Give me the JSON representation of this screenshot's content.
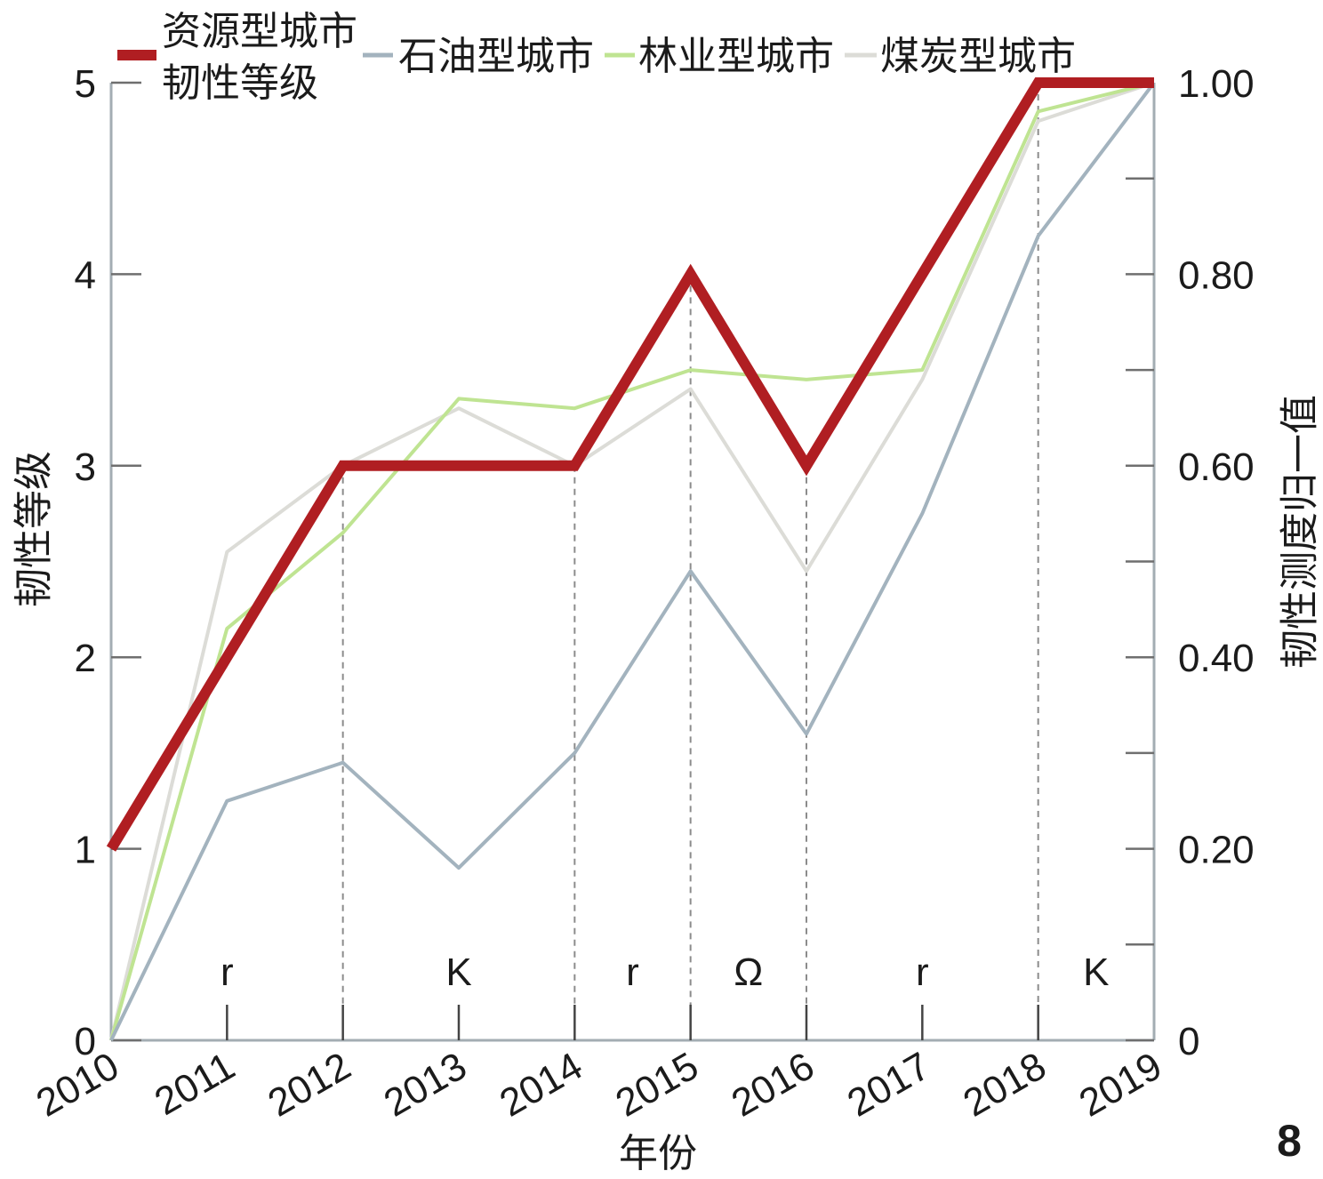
{
  "chart_data": {
    "type": "line",
    "xlabel": "年份",
    "categories": [
      "2010",
      "2011",
      "2012",
      "2013",
      "2014",
      "2015",
      "2016",
      "2017",
      "2018",
      "2019"
    ],
    "y_left": {
      "label": "韧性等级",
      "range": [
        0,
        5
      ],
      "ticks": [
        0,
        1,
        2,
        3,
        4,
        5
      ]
    },
    "y_right": {
      "label": "韧性测度归一值",
      "range": [
        0,
        1
      ],
      "major_ticks": [
        0,
        0.2,
        0.4,
        0.6,
        0.8,
        1.0
      ],
      "tick_labels": [
        "0",
        "0.20",
        "0.40",
        "0.60",
        "0.80",
        "1.00"
      ],
      "minor_ticks": [
        0.1,
        0.3,
        0.5,
        0.7,
        0.9
      ]
    },
    "series": [
      {
        "name": "资源型城市韧性等级",
        "axis": "left",
        "color": "#b01e22",
        "values": [
          1,
          2,
          3,
          3,
          3,
          4,
          3,
          4,
          5,
          5
        ]
      },
      {
        "name": "石油型城市",
        "axis": "right",
        "color": "#a3b3be",
        "values": [
          0,
          0.25,
          0.29,
          0.18,
          0.3,
          0.49,
          0.32,
          0.55,
          0.84,
          1.0
        ]
      },
      {
        "name": "林业型城市",
        "axis": "right",
        "color": "#bfe492",
        "values": [
          0,
          0.43,
          0.53,
          0.67,
          0.66,
          0.7,
          0.69,
          0.7,
          0.97,
          1.0
        ]
      },
      {
        "name": "煤炭型城市",
        "axis": "right",
        "color": "#dcdcd7",
        "values": [
          0,
          0.51,
          0.6,
          0.66,
          0.6,
          0.68,
          0.49,
          0.69,
          0.96,
          1.0
        ]
      }
    ],
    "guide_years": [
      2012,
      2014,
      2015,
      2016,
      2018
    ],
    "phases": [
      {
        "label": "r",
        "x": 2011
      },
      {
        "label": "K",
        "x": 2013
      },
      {
        "label": "r",
        "x": 2014.5
      },
      {
        "label": "Ω",
        "x": 2015.5
      },
      {
        "label": "r",
        "x": 2017
      },
      {
        "label": "K",
        "x": 2018.5
      }
    ],
    "legend_position": "top",
    "grid": false
  },
  "panel_label": "8",
  "colors": {
    "axis": "#a3adb3",
    "tick": "#6f6f6f",
    "guide": "#8c8c8c"
  }
}
